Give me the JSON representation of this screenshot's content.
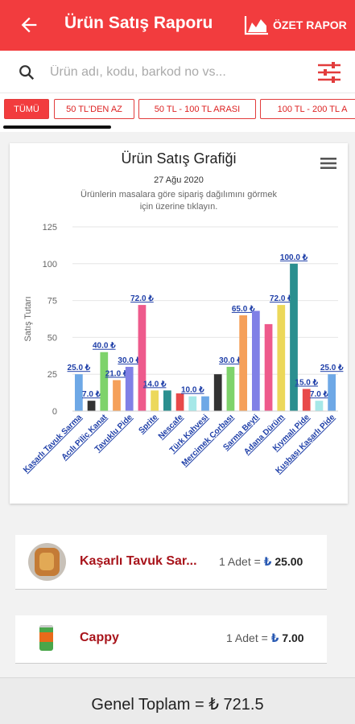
{
  "header": {
    "title": "Ürün Satış Raporu",
    "summary_label": "ÖZET RAPOR",
    "colors": {
      "primary": "#f23c3e"
    }
  },
  "search": {
    "placeholder": "Ürün adı, kodu, barkod no vs..."
  },
  "filters": [
    {
      "label": "TÜMÜ",
      "active": true
    },
    {
      "label": "50 TL'DEN AZ",
      "active": false
    },
    {
      "label": "50 TL - 100 TL ARASI",
      "active": false
    },
    {
      "label": "100 TL - 200 TL A",
      "active": false
    }
  ],
  "chart_card": {
    "title": "Ürün Satış Grafiği",
    "date": "27 Ağu 2020",
    "subtitle": "Ürünlerin masalara göre sipariş dağılımını görmek için üzerine tıklayın."
  },
  "chart_data": {
    "type": "bar",
    "ylabel": "Satış Tutarı",
    "ylim": [
      0,
      125
    ],
    "yticks": [
      0,
      25,
      50,
      75,
      100,
      125
    ],
    "grid": true,
    "categories": [
      "Kaşarlı Tavuk Sarma",
      "",
      "Acılı Piliç Kanat",
      "",
      "Tavuklu Pide",
      "",
      "Sprite",
      "",
      "Nescafe",
      "",
      "Türk Kahvesi",
      "",
      "Mercimek Çorbası",
      "",
      "Sarma Beyti",
      "",
      "Adana Dürüm",
      "",
      "Kıymalı Pide",
      "",
      "Kuşbaşı Kaşarlı Pide"
    ],
    "values": [
      25,
      7,
      40,
      21,
      30,
      72,
      14,
      14,
      12,
      10,
      10,
      25,
      30,
      65,
      68,
      59,
      72,
      100,
      15,
      7,
      25
    ],
    "data_labels": [
      "25.0 ₺",
      "7.0 ₺",
      "40.0 ₺",
      "21.0 ₺",
      "30.0 ₺",
      "72.0 ₺",
      "14.0 ₺",
      "",
      "",
      "10.0 ₺",
      "",
      "",
      "30.0 ₺",
      "65.0 ₺",
      "",
      "",
      "72.0 ₺",
      "100.0 ₺",
      "15.0 ₺",
      "7.0 ₺",
      "25.0 ₺"
    ],
    "colors": [
      "#6ea8e6",
      "#333333",
      "#7ed36b",
      "#f5a05a",
      "#8080e6",
      "#ee5a8c",
      "#ecd85a",
      "#2a8f8f",
      "#e84a4a",
      "#a6e8e8",
      "#6ea8e6",
      "#333333",
      "#7ed36b",
      "#f5a05a",
      "#8080e6",
      "#ee5a8c",
      "#ecd85a",
      "#2a8f8f",
      "#e84a4a",
      "#a6e8e8",
      "#6ea8e6"
    ]
  },
  "list": [
    {
      "name": "Kaşarlı Tavuk Sar...",
      "qty": "1 Adet = ",
      "currency": "₺",
      "amount": "25.00",
      "image": "pide-photo"
    },
    {
      "name": "Cappy",
      "qty": "1 Adet = ",
      "currency": "₺",
      "amount": "7.00",
      "image": "juice-can"
    }
  ],
  "footer": {
    "total": "Genel Toplam = ₺ 721.5"
  }
}
